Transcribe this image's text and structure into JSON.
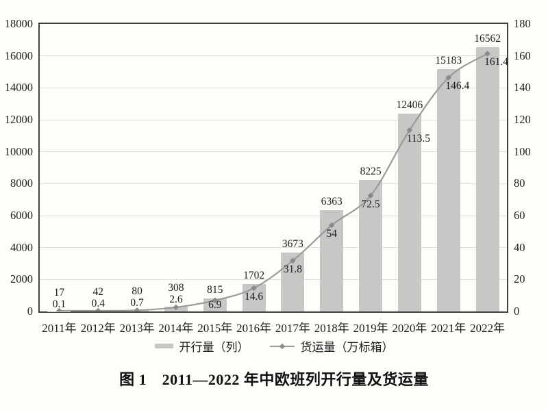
{
  "chart_data": {
    "type": "bar",
    "title": "图 1　2011—2022 年中欧班列开行量及货运量",
    "categories": [
      "2011年",
      "2012年",
      "2013年",
      "2014年",
      "2015年",
      "2016年",
      "2017年",
      "2018年",
      "2019年",
      "2020年",
      "2021年",
      "2022年"
    ],
    "series": [
      {
        "name": "开行量（列）",
        "kind": "bar",
        "axis": "left",
        "values": [
          17,
          42,
          80,
          308,
          815,
          1702,
          3673,
          6363,
          8225,
          12406,
          15183,
          16562
        ],
        "labels": [
          "17",
          "42",
          "80",
          "308",
          "815",
          "1702",
          "3673",
          "6363",
          "8225",
          "12406",
          "15183",
          "16562"
        ]
      },
      {
        "name": "货运量（万标箱）",
        "kind": "line",
        "axis": "right",
        "values": [
          0.1,
          0.4,
          0.7,
          2.6,
          6.9,
          14.6,
          31.8,
          54,
          72.5,
          113.5,
          146.4,
          161.4
        ],
        "labels": [
          "0.1",
          "0.4",
          "0.7",
          "2.6",
          "6.9",
          "14.6",
          "31.8",
          "54",
          "72.5",
          "113.5",
          "146.4",
          "161.4"
        ]
      }
    ],
    "left_axis": {
      "min": 0,
      "max": 18000,
      "step": 2000,
      "ticks": [
        "0",
        "2000",
        "4000",
        "6000",
        "8000",
        "10000",
        "12000",
        "14000",
        "16000",
        "18000"
      ]
    },
    "right_axis": {
      "min": 0,
      "max": 180,
      "step": 20,
      "ticks": [
        "0",
        "20",
        "40",
        "60",
        "80",
        "100",
        "120",
        "140",
        "160",
        "180"
      ]
    },
    "grid": true,
    "legend_position": "bottom",
    "colors": {
      "bar": "#c7c7c6",
      "line": "#9a9a99",
      "marker": "#8a8a89",
      "grid": "#dddddb",
      "axis_border": "#404040",
      "text": "#1a1a1a",
      "background": "#fdfdfa"
    }
  }
}
